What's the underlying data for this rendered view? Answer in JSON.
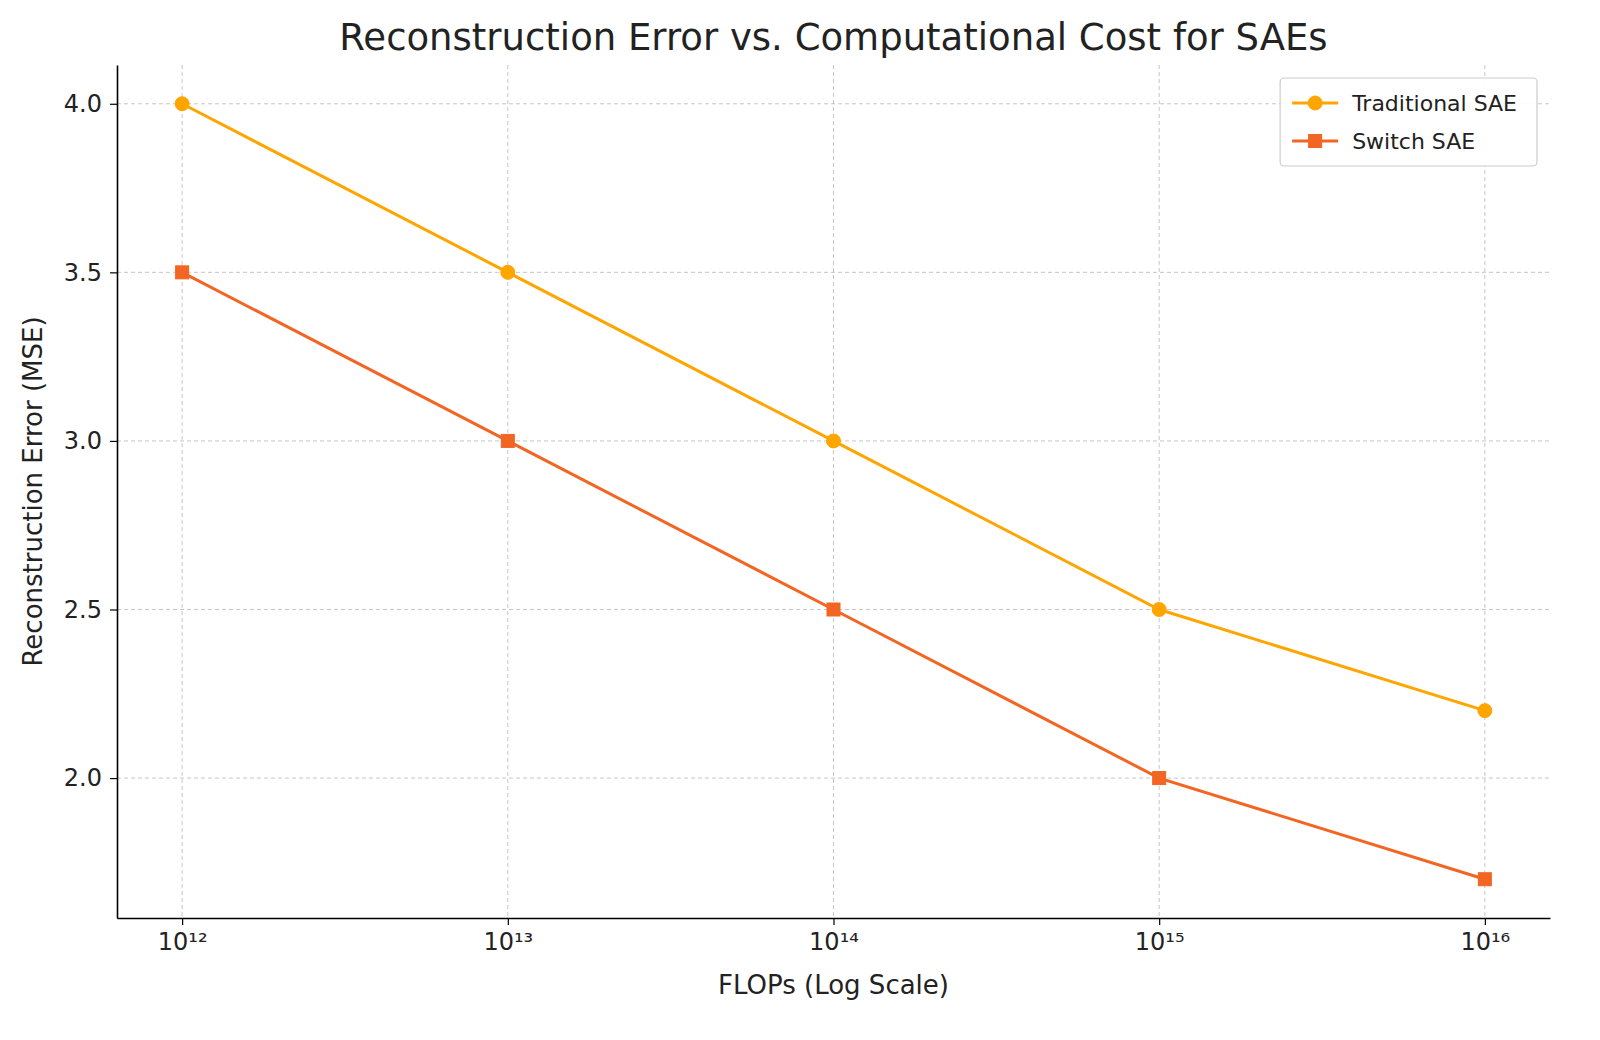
{
  "chart_data": {
    "type": "line",
    "title": "Reconstruction Error vs. Computational Cost for SAEs",
    "x_label": "FLOPs (Log Scale)",
    "y_label": "Reconstruction Error (MSE)",
    "x": [
      1000000000000.0,
      10000000000000.0,
      100000000000000.0,
      1000000000000000.0,
      1e+16
    ],
    "series": [
      {
        "name": "Traditional SAE",
        "color": "#ffa500",
        "marker": "circle",
        "values": [
          4.0,
          3.5,
          3.0,
          2.5,
          2.2
        ]
      },
      {
        "name": "Switch SAE",
        "color": "#f26522",
        "marker": "square",
        "values": [
          3.5,
          3.0,
          2.5,
          2.0,
          1.7
        ]
      }
    ],
    "log": "x",
    "xlim": [
      631000000000.0,
      1.585e+16
    ],
    "xticks": [
      {
        "value": 1000000000000.0,
        "label": "10¹²"
      },
      {
        "value": 10000000000000.0,
        "label": "10¹³"
      },
      {
        "value": 100000000000000.0,
        "label": "10¹⁴"
      },
      {
        "value": 1000000000000000.0,
        "label": "10¹⁵"
      },
      {
        "value": 1e+16,
        "label": "10¹⁶"
      }
    ],
    "ylim": [
      1.585,
      4.115
    ],
    "yticks": [
      {
        "value": 2.0,
        "label": "2.0"
      },
      2.5,
      {
        "value": 3.0,
        "label": "3.0"
      },
      3.5,
      {
        "value": 4.0,
        "label": "4.0"
      }
    ],
    "grid": true,
    "legend": "upper right"
  }
}
